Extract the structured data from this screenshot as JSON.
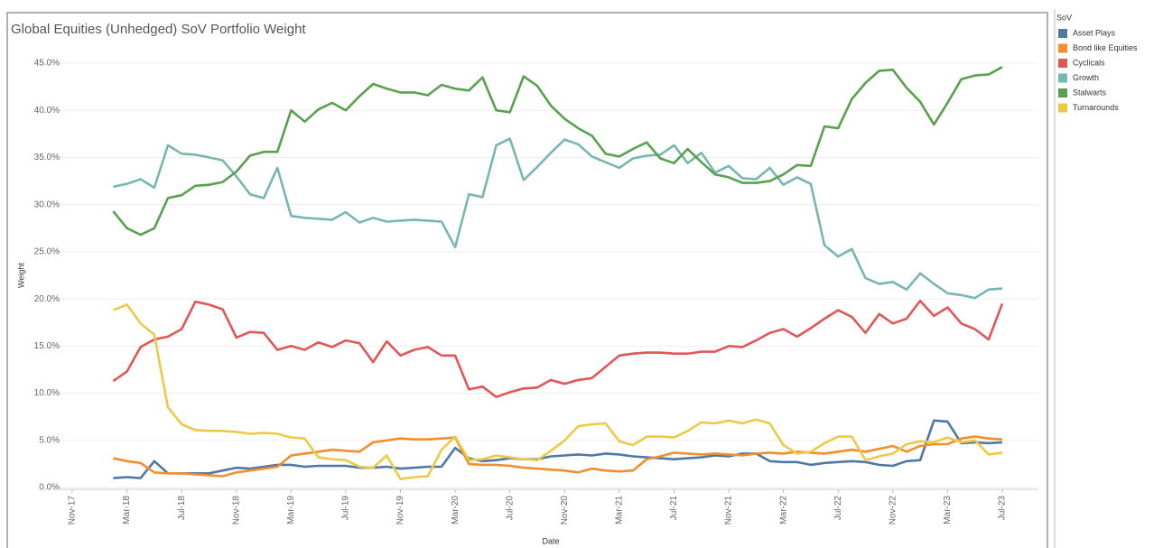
{
  "chart_data": {
    "type": "line",
    "title": "Global Equities (Unhedged) SoV Portfolio Weight",
    "x_label": "Date",
    "y_label": "Weight",
    "legend_title": "SoV",
    "categories": [
      "Nov-17",
      null,
      null,
      null,
      "Mar-18",
      null,
      null,
      null,
      "Jul-18",
      null,
      null,
      null,
      "Nov-18",
      null,
      null,
      null,
      "Mar-19",
      null,
      null,
      null,
      "Jul-19",
      null,
      null,
      null,
      "Nov-19",
      null,
      null,
      null,
      "Mar-20",
      null,
      null,
      null,
      "Jul-20",
      null,
      null,
      null,
      "Nov-20",
      null,
      null,
      null,
      "Mar-21",
      null,
      null,
      null,
      "Jul-21",
      null,
      null,
      null,
      "Nov-21",
      null,
      null,
      null,
      "Mar-22",
      null,
      null,
      null,
      "Jul-22",
      null,
      null,
      null,
      "Nov-22",
      null,
      null,
      null,
      "Mar-23",
      null,
      null,
      null,
      "Jul-23"
    ],
    "ylim": [
      0,
      45
    ],
    "yticks": [
      {
        "value": 0,
        "label": "0.0%"
      },
      {
        "value": 5,
        "label": "5.0%"
      },
      {
        "value": 10,
        "label": "10.0%"
      },
      {
        "value": 15,
        "label": "15.0%"
      },
      {
        "value": 20,
        "label": "20.0%"
      },
      {
        "value": 25,
        "label": "25.0%"
      },
      {
        "value": 30,
        "label": "30.0%"
      },
      {
        "value": 35,
        "label": "35.0%"
      },
      {
        "value": 40,
        "label": "40.0%"
      },
      {
        "value": 45,
        "label": "45.0%"
      }
    ],
    "grid": true,
    "series": [
      {
        "name": "Asset Plays",
        "color": "#4e79a7",
        "values": [
          null,
          null,
          null,
          1.0,
          1.1,
          1.0,
          2.8,
          1.5,
          1.5,
          1.5,
          1.5,
          1.8,
          2.1,
          2.0,
          2.2,
          2.4,
          2.4,
          2.2,
          2.3,
          2.3,
          2.3,
          2.1,
          2.1,
          2.2,
          2.0,
          2.1,
          2.2,
          2.2,
          4.2,
          3.1,
          2.8,
          2.9,
          3.1,
          3.0,
          3.0,
          3.3,
          3.4,
          3.5,
          3.4,
          3.6,
          3.5,
          3.3,
          3.2,
          3.1,
          3.0,
          3.1,
          3.2,
          3.4,
          3.3,
          3.6,
          3.6,
          2.8,
          2.7,
          2.7,
          2.4,
          2.6,
          2.7,
          2.8,
          2.7,
          2.4,
          2.3,
          2.8,
          2.9,
          7.1,
          7.0,
          4.7,
          4.8,
          4.7,
          4.8
        ]
      },
      {
        "name": "Bond like Equities",
        "color": "#f28e2b",
        "values": [
          null,
          null,
          null,
          3.1,
          2.8,
          2.6,
          1.6,
          1.5,
          1.5,
          1.4,
          1.3,
          1.2,
          1.6,
          1.8,
          2.0,
          2.2,
          3.4,
          3.6,
          3.8,
          4.0,
          3.9,
          3.8,
          4.8,
          5.0,
          5.2,
          5.1,
          5.1,
          5.2,
          5.3,
          2.5,
          2.4,
          2.4,
          2.3,
          2.1,
          2.0,
          1.9,
          1.8,
          1.6,
          2.0,
          1.8,
          1.7,
          1.8,
          3.0,
          3.3,
          3.7,
          3.6,
          3.5,
          3.6,
          3.5,
          3.4,
          3.6,
          3.7,
          3.6,
          3.8,
          3.7,
          3.6,
          3.8,
          4.0,
          3.8,
          4.1,
          4.4,
          3.8,
          4.4,
          4.6,
          4.6,
          5.2,
          5.4,
          5.2,
          5.1
        ]
      },
      {
        "name": "Cyclicals",
        "color": "#e15759",
        "values": [
          null,
          null,
          null,
          11.3,
          12.3,
          14.9,
          15.7,
          16.0,
          16.8,
          19.7,
          19.4,
          18.9,
          15.9,
          16.5,
          16.4,
          14.6,
          15.0,
          14.6,
          15.4,
          14.9,
          15.6,
          15.3,
          13.3,
          15.5,
          14.0,
          14.6,
          14.9,
          14.0,
          14.0,
          10.4,
          10.7,
          9.6,
          10.1,
          10.5,
          10.6,
          11.4,
          11.0,
          11.4,
          11.6,
          12.8,
          14.0,
          14.2,
          14.3,
          14.3,
          14.2,
          14.2,
          14.4,
          14.4,
          15.0,
          14.9,
          15.6,
          16.4,
          16.8,
          16.0,
          16.9,
          17.9,
          18.8,
          18.1,
          16.4,
          18.4,
          17.4,
          17.9,
          19.8,
          18.2,
          19.1,
          17.4,
          16.8,
          15.7,
          19.5
        ]
      },
      {
        "name": "Growth",
        "color": "#76b7b2",
        "values": [
          null,
          null,
          null,
          31.9,
          32.2,
          32.7,
          31.8,
          36.3,
          35.4,
          35.3,
          35.0,
          34.7,
          33.0,
          31.1,
          30.7,
          33.9,
          28.8,
          28.6,
          28.5,
          28.4,
          29.2,
          28.1,
          28.6,
          28.2,
          28.3,
          28.4,
          28.3,
          28.2,
          25.5,
          31.1,
          30.8,
          36.3,
          37.0,
          32.6,
          34.0,
          35.5,
          36.9,
          36.4,
          35.1,
          34.5,
          33.9,
          34.9,
          35.2,
          35.3,
          36.3,
          34.4,
          35.5,
          33.4,
          34.1,
          32.8,
          32.7,
          33.9,
          32.1,
          32.9,
          32.2,
          25.7,
          24.5,
          25.3,
          22.2,
          21.6,
          21.8,
          21.0,
          22.7,
          21.6,
          20.6,
          20.4,
          20.1,
          21.0,
          21.1
        ]
      },
      {
        "name": "Stalwarts",
        "color": "#59a14f",
        "values": [
          null,
          null,
          null,
          29.3,
          27.5,
          26.8,
          27.5,
          30.7,
          31.0,
          32.0,
          32.1,
          32.4,
          33.5,
          35.2,
          35.6,
          35.6,
          40.0,
          38.8,
          40.1,
          40.8,
          40.0,
          41.5,
          42.8,
          42.3,
          41.9,
          41.9,
          41.6,
          42.7,
          42.3,
          42.1,
          43.5,
          40.0,
          39.8,
          43.6,
          42.6,
          40.5,
          39.1,
          38.1,
          37.3,
          35.4,
          35.1,
          35.9,
          36.6,
          34.9,
          34.4,
          35.9,
          34.5,
          33.2,
          32.9,
          32.3,
          32.3,
          32.5,
          33.2,
          34.2,
          34.1,
          38.3,
          38.1,
          41.2,
          42.9,
          44.2,
          44.3,
          42.4,
          40.9,
          38.5,
          40.8,
          43.3,
          43.7,
          43.8,
          44.6
        ]
      },
      {
        "name": "Turnarounds",
        "color": "#edc948",
        "values": [
          null,
          null,
          null,
          18.8,
          19.4,
          17.4,
          16.2,
          8.5,
          6.7,
          6.1,
          6.0,
          6.0,
          5.9,
          5.7,
          5.8,
          5.7,
          5.3,
          5.2,
          3.2,
          3.0,
          2.9,
          2.2,
          2.1,
          3.4,
          0.9,
          1.1,
          1.2,
          4.0,
          5.4,
          2.9,
          3.0,
          3.4,
          3.2,
          3.0,
          2.9,
          3.9,
          5.0,
          6.5,
          6.7,
          6.8,
          4.9,
          4.5,
          5.4,
          5.4,
          5.3,
          6.0,
          6.9,
          6.8,
          7.1,
          6.8,
          7.2,
          6.8,
          4.5,
          3.6,
          3.8,
          4.7,
          5.4,
          5.4,
          2.9,
          3.3,
          3.6,
          4.6,
          4.9,
          4.8,
          5.3,
          4.8,
          5.0,
          3.5,
          3.7
        ]
      }
    ]
  }
}
